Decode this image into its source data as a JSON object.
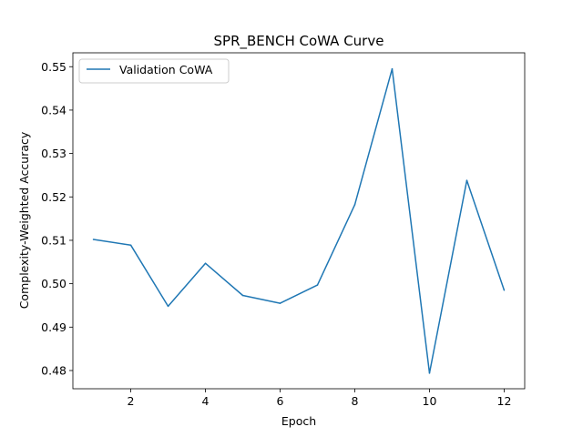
{
  "chart_data": {
    "type": "line",
    "title": "SPR_BENCH CoWA Curve",
    "xlabel": "Epoch",
    "ylabel": "Complexity-Weighted Accuracy",
    "xlim": [
      0.45,
      12.55
    ],
    "ylim": [
      0.4758,
      0.5532
    ],
    "xticks": [
      2,
      4,
      6,
      8,
      10,
      12
    ],
    "xtick_labels": [
      "2",
      "4",
      "6",
      "8",
      "10",
      "12"
    ],
    "yticks": [
      0.48,
      0.49,
      0.5,
      0.51,
      0.52,
      0.53,
      0.54,
      0.55
    ],
    "ytick_labels": [
      "0.48",
      "0.49",
      "0.50",
      "0.51",
      "0.52",
      "0.53",
      "0.54",
      "0.55"
    ],
    "grid": false,
    "legend_position": "upper-left",
    "series": [
      {
        "name": "Validation CoWA",
        "color": "#1f77b4",
        "x": [
          1,
          2,
          3,
          4,
          5,
          6,
          7,
          8,
          9,
          10,
          11,
          12
        ],
        "y": [
          0.5102,
          0.5089,
          0.4948,
          0.5047,
          0.4973,
          0.4955,
          0.4997,
          0.5182,
          0.5495,
          0.4794,
          0.5238,
          0.4985
        ]
      }
    ]
  }
}
